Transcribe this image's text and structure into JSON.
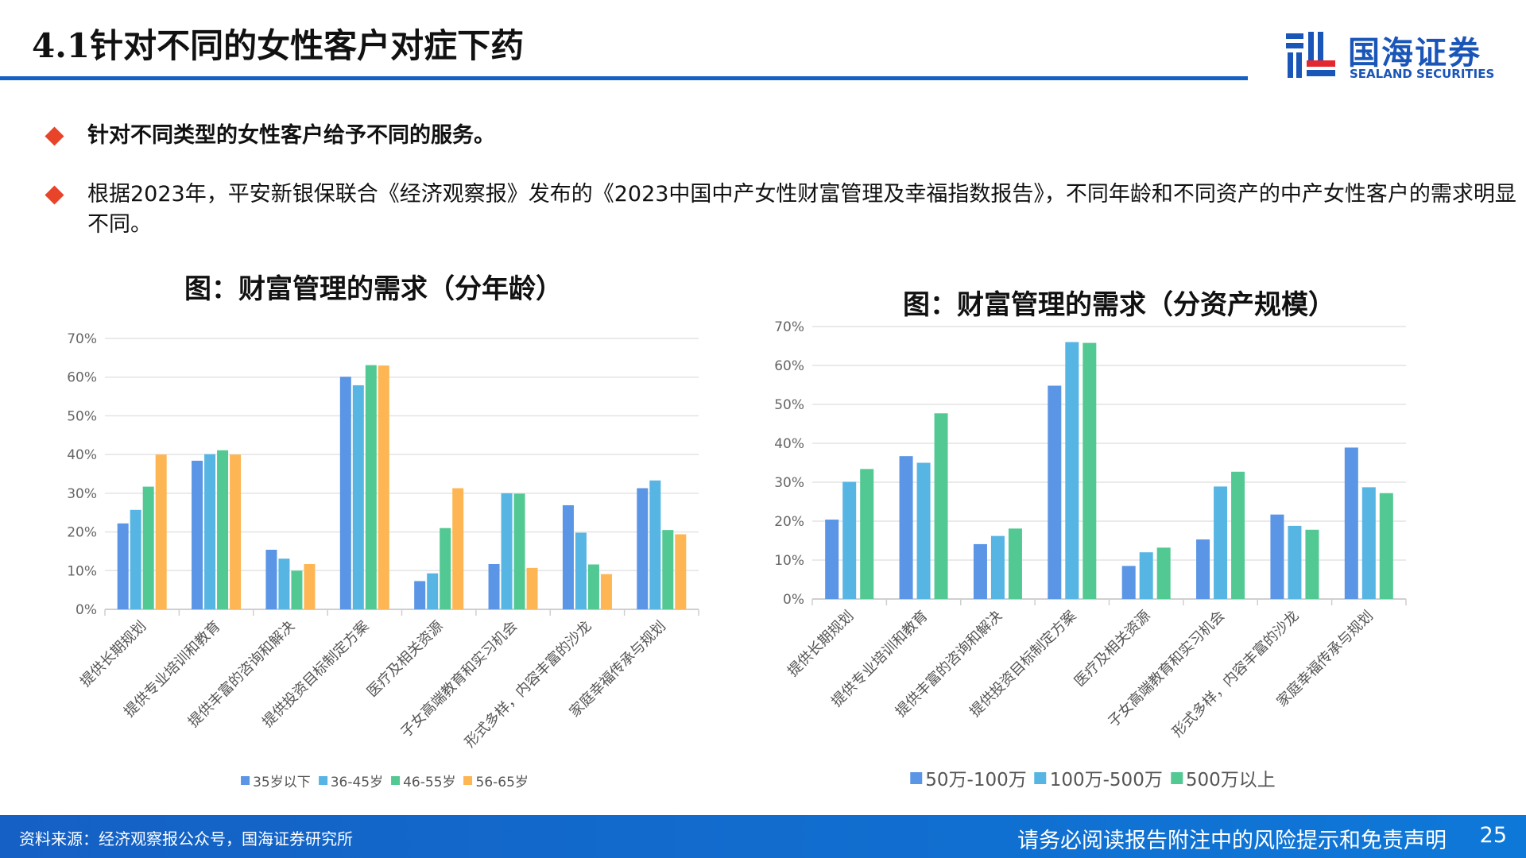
{
  "header": {
    "title": "4.1针对不同的女性客户对症下药",
    "logo_cn": "国海证券",
    "logo_en": "SEALAND SECURITIES"
  },
  "bullets": [
    "针对不同类型的女性客户给予不同的服务。",
    "根据2023年，平安新银保联合《经济观察报》发布的《2023中国中产女性财富管理及幸福指数报告》，不同年龄和不同资产的中产女性客户的需求明显不同。"
  ],
  "colors": {
    "s1": "#5b95e5",
    "s2": "#57b5e3",
    "s3": "#52c993",
    "s4": "#fdb653",
    "accent": "#e8442a",
    "brand": "#1560c4"
  },
  "chart_data": [
    {
      "type": "bar",
      "title": "图：财富管理的需求（分年龄）",
      "ylim": [
        0,
        70
      ],
      "yticks": [
        "0%",
        "10%",
        "20%",
        "30%",
        "40%",
        "50%",
        "60%",
        "70%"
      ],
      "grid": true,
      "legend": "bottom",
      "categories": [
        "提供长期规划",
        "提供专业培训和教育",
        "提供丰富的咨询和解决",
        "提供投资目标制定方案",
        "医疗及相关资源",
        "子女高端教育和实习机会",
        "形式多样，内容丰富的沙龙",
        "家庭幸福传承与规划"
      ],
      "series": [
        {
          "name": "35岁以下",
          "values": [
            22.2,
            38.4,
            15.4,
            60.1,
            7.3,
            11.7,
            26.9,
            31.3
          ]
        },
        {
          "name": "36-45岁",
          "values": [
            25.7,
            40.1,
            13.1,
            57.9,
            9.3,
            30,
            19.8,
            33.3
          ]
        },
        {
          "name": "46-55岁",
          "values": [
            31.7,
            41.1,
            10,
            63.1,
            21,
            29.9,
            11.6,
            20.5
          ]
        },
        {
          "name": "56-65岁",
          "values": [
            40,
            40,
            11.7,
            63,
            31.3,
            10.7,
            9.1,
            19.4
          ]
        }
      ]
    },
    {
      "type": "bar",
      "title": "图：财富管理的需求（分资产规模）",
      "ylim": [
        0,
        70
      ],
      "yticks": [
        "0%",
        "10%",
        "20%",
        "30%",
        "40%",
        "50%",
        "60%",
        "70%"
      ],
      "grid": true,
      "legend": "bottom",
      "categories": [
        "提供长期规划",
        "提供专业培训和教育",
        "提供丰富的咨询和解决",
        "提供投资目标制定方案",
        "医疗及相关资源",
        "子女高端教育和实习机会",
        "形式多样，内容丰富的沙龙",
        "家庭幸福传承与规划"
      ],
      "series": [
        {
          "name": "50万-100万",
          "values": [
            20.4,
            36.7,
            14.1,
            54.8,
            8.5,
            15.3,
            21.7,
            38.9
          ]
        },
        {
          "name": "100万-500万",
          "values": [
            30.1,
            35,
            16.2,
            66,
            12,
            28.9,
            18.8,
            28.7
          ]
        },
        {
          "name": "500万以上",
          "values": [
            33.4,
            47.7,
            18.1,
            65.8,
            13.2,
            32.7,
            17.8,
            27.2
          ]
        }
      ]
    }
  ],
  "footer": {
    "source": "资料来源：经济观察报公众号，国海证券研究所",
    "disclaimer": "请务必阅读报告附注中的风险提示和免责声明",
    "page": "25"
  }
}
